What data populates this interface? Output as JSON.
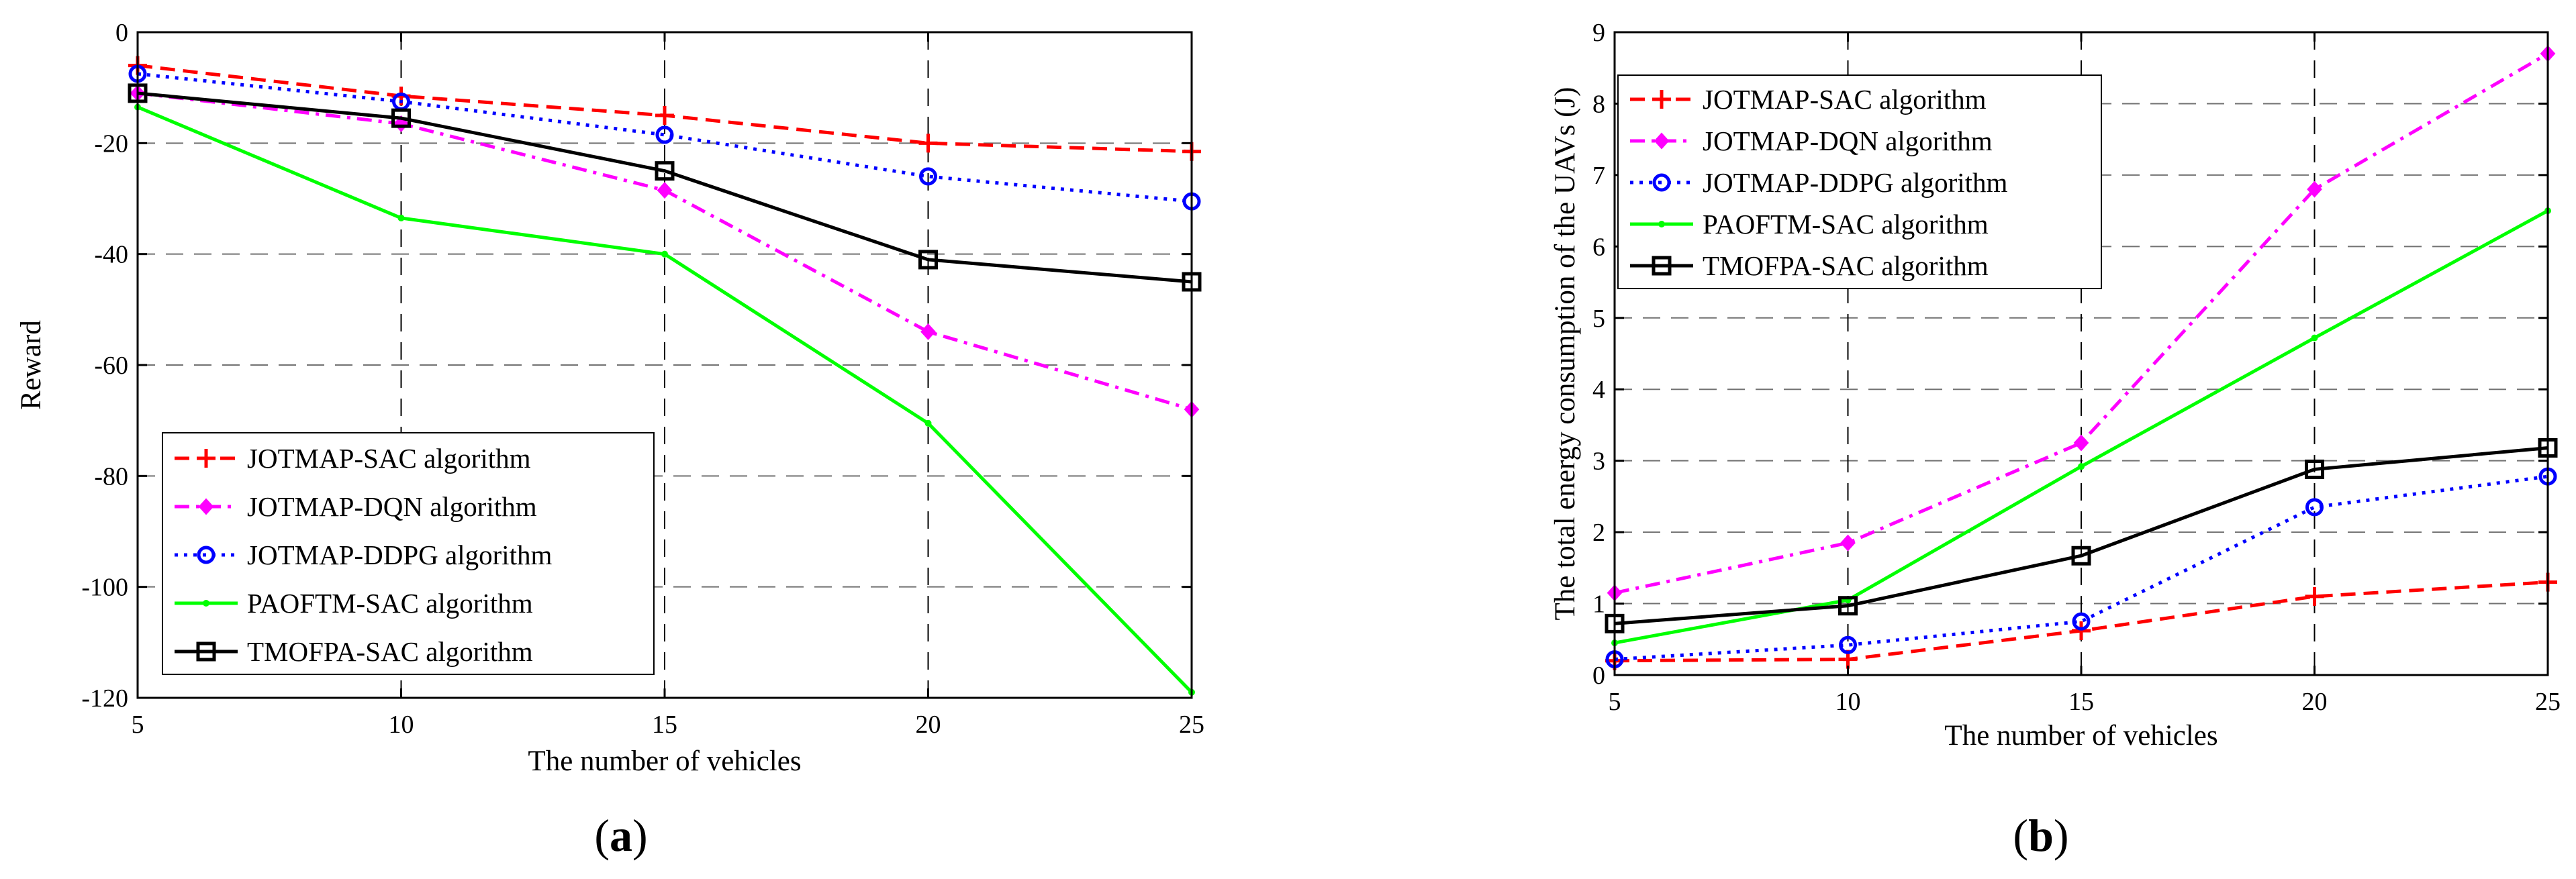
{
  "chart_data": [
    {
      "type": "line",
      "caption_letter": "a",
      "xlabel": "The number of vehicles",
      "ylabel": "Reward",
      "x": [
        5,
        10,
        15,
        20,
        25
      ],
      "xlim": [
        5,
        25
      ],
      "ylim": [
        -120,
        0
      ],
      "xticks": [
        "5",
        "10",
        "15",
        "20",
        "25"
      ],
      "yticks": [
        "0",
        "-20",
        "-40",
        "-60",
        "-80",
        "-100",
        "-120"
      ],
      "grid": true,
      "legend_position": "bottom-left",
      "series": [
        {
          "name": "JOTMAP-SAC algorithm",
          "color": "#ff0000",
          "style": "dashed",
          "marker": "plus",
          "values": [
            -6,
            -11.5,
            -15,
            -20,
            -21.5
          ]
        },
        {
          "name": "JOTMAP-DQN algorithm",
          "color": "#ff00ff",
          "style": "dashdot",
          "marker": "diamond",
          "values": [
            -11,
            -16.5,
            -28.5,
            -54,
            -68
          ]
        },
        {
          "name": "JOTMAP-DDPG algorithm",
          "color": "#0000ff",
          "style": "dotted",
          "marker": "circle",
          "values": [
            -7.5,
            -12.5,
            -18.5,
            -26,
            -30.5
          ]
        },
        {
          "name": "PAOFTM-SAC algorithm",
          "color": "#00ff00",
          "style": "solid",
          "marker": "dot",
          "values": [
            -13.5,
            -33.5,
            -40,
            -70.5,
            -119
          ]
        },
        {
          "name": "TMOFPA-SAC algorithm",
          "color": "#000000",
          "style": "solid",
          "marker": "square",
          "values": [
            -11,
            -15.5,
            -25,
            -41,
            -45
          ]
        }
      ]
    },
    {
      "type": "line",
      "caption_letter": "b",
      "xlabel": "The number of vehicles",
      "ylabel": "The total energy consumption of the UAVs (J)",
      "x": [
        5,
        10,
        15,
        20,
        25
      ],
      "xlim": [
        5,
        25
      ],
      "ylim": [
        0,
        9
      ],
      "xticks": [
        "5",
        "10",
        "15",
        "20",
        "25"
      ],
      "yticks": [
        "0",
        "1",
        "2",
        "3",
        "4",
        "5",
        "6",
        "7",
        "8",
        "9"
      ],
      "grid": true,
      "legend_position": "top-left",
      "series": [
        {
          "name": "JOTMAP-SAC algorithm",
          "color": "#ff0000",
          "style": "dashed",
          "marker": "plus",
          "values": [
            0.2,
            0.22,
            0.62,
            1.1,
            1.3
          ]
        },
        {
          "name": "JOTMAP-DQN algorithm",
          "color": "#ff00ff",
          "style": "dashdot",
          "marker": "diamond",
          "values": [
            1.15,
            1.85,
            3.25,
            6.8,
            8.7
          ]
        },
        {
          "name": "JOTMAP-DDPG algorithm",
          "color": "#0000ff",
          "style": "dotted",
          "marker": "circle",
          "values": [
            0.22,
            0.42,
            0.75,
            2.35,
            2.78
          ]
        },
        {
          "name": "PAOFTM-SAC algorithm",
          "color": "#00ff00",
          "style": "solid",
          "marker": "dot",
          "values": [
            0.45,
            1.05,
            2.92,
            4.72,
            6.5
          ]
        },
        {
          "name": "TMOFPA-SAC algorithm",
          "color": "#000000",
          "style": "solid",
          "marker": "square",
          "values": [
            0.72,
            0.97,
            1.67,
            2.88,
            3.18
          ]
        }
      ]
    }
  ]
}
